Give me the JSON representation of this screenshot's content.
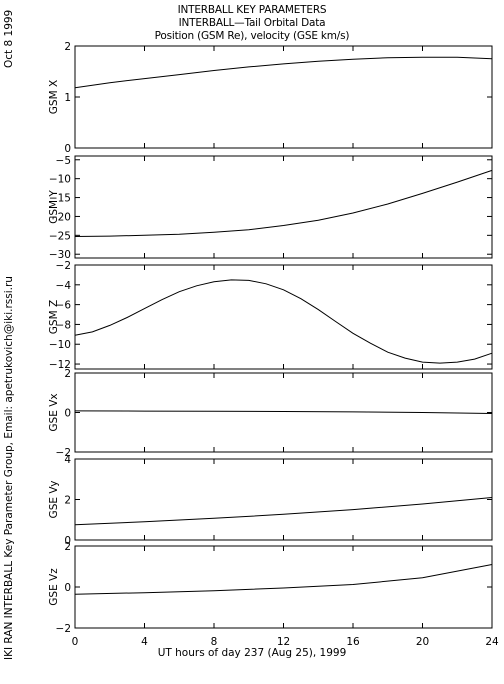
{
  "header": {
    "title": "INTERBALL KEY PARAMETERS",
    "subtitle": "INTERBALL—Tail Orbital Data",
    "description": "Position (GSM Re), velocity (GSE km/s)"
  },
  "date_stamp": "Oct  8 1999",
  "credit": "IKI RAN INTERBALL Key Parameter Group, Email: apetrukovich@iki.rssi.ru",
  "xlabel": "UT hours of day 237 (Aug 25), 1999",
  "chart_data": [
    {
      "type": "line",
      "ylabel": "GSM X",
      "ylim": [
        0,
        2
      ],
      "yticks": [
        0,
        1,
        2
      ],
      "x": [
        0,
        2,
        4,
        6,
        8,
        10,
        12,
        14,
        16,
        18,
        20,
        22,
        24
      ],
      "y": [
        1.18,
        1.28,
        1.36,
        1.44,
        1.52,
        1.59,
        1.65,
        1.7,
        1.74,
        1.77,
        1.78,
        1.78,
        1.75
      ]
    },
    {
      "type": "line",
      "ylabel": "GSM Y",
      "ylim": [
        -31,
        -4
      ],
      "yticks": [
        -30,
        -25,
        -20,
        -15,
        -10,
        -5
      ],
      "x": [
        0,
        2,
        4,
        6,
        8,
        10,
        12,
        14,
        16,
        18,
        20,
        22,
        24
      ],
      "y": [
        -25.3,
        -25.2,
        -25.0,
        -24.7,
        -24.2,
        -23.5,
        -22.4,
        -21.0,
        -19.1,
        -16.7,
        -13.9,
        -10.9,
        -7.8
      ]
    },
    {
      "type": "line",
      "ylabel": "GSM Z",
      "ylim": [
        -12.5,
        -2
      ],
      "yticks": [
        -12,
        -10,
        -8,
        -6,
        -4,
        -2
      ],
      "x": [
        0,
        1,
        2,
        3,
        4,
        5,
        6,
        7,
        8,
        9,
        10,
        11,
        12,
        13,
        14,
        15,
        16,
        17,
        18,
        19,
        20,
        21,
        22,
        23,
        24
      ],
      "y": [
        -9.1,
        -8.75,
        -8.1,
        -7.3,
        -6.4,
        -5.5,
        -4.7,
        -4.1,
        -3.7,
        -3.5,
        -3.55,
        -3.9,
        -4.5,
        -5.4,
        -6.5,
        -7.7,
        -8.9,
        -9.9,
        -10.8,
        -11.4,
        -11.8,
        -11.9,
        -11.8,
        -11.5,
        -10.9
      ]
    },
    {
      "type": "line",
      "ylabel": "GSE Vx",
      "ylim": [
        -2,
        2
      ],
      "yticks": [
        -2,
        0,
        2
      ],
      "x": [
        0,
        4,
        8,
        12,
        16,
        20,
        24
      ],
      "y": [
        0.08,
        0.07,
        0.06,
        0.05,
        0.03,
        0.0,
        -0.05
      ]
    },
    {
      "type": "line",
      "ylabel": "GSE Vy",
      "ylim": [
        0,
        4
      ],
      "yticks": [
        0,
        2,
        4
      ],
      "x": [
        0,
        4,
        8,
        12,
        16,
        20,
        24
      ],
      "y": [
        0.75,
        0.9,
        1.07,
        1.27,
        1.5,
        1.78,
        2.1
      ]
    },
    {
      "type": "line",
      "ylabel": "GSE Vz",
      "ylim": [
        -2,
        2
      ],
      "yticks": [
        -2,
        0,
        2
      ],
      "x": [
        0,
        4,
        8,
        12,
        16,
        20,
        24
      ],
      "y": [
        -0.35,
        -0.28,
        -0.18,
        -0.05,
        0.12,
        0.45,
        1.1
      ]
    }
  ],
  "xticks": [
    0,
    4,
    8,
    12,
    16,
    20,
    24
  ]
}
